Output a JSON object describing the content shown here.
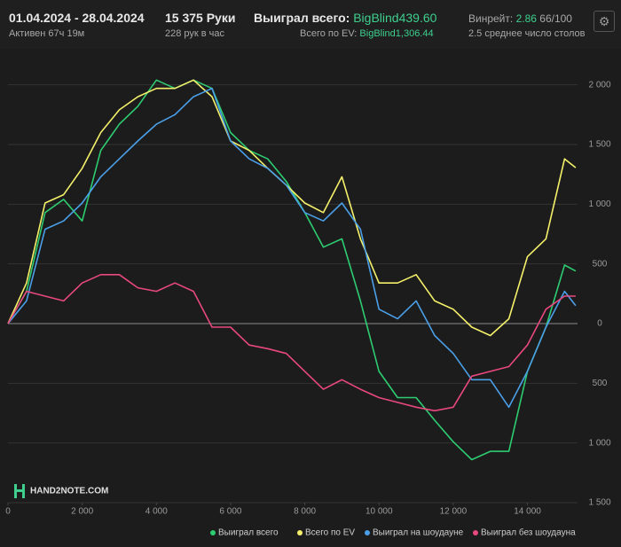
{
  "header": {
    "period": "01.04.2024 - 28.04.2024",
    "active": "Активен 67ч 19м",
    "hands": "15 375 Руки",
    "rate": "228 рук в час",
    "won_label": "Выиграл всего:",
    "won_value": "BigBlind439.60",
    "ev_label": "Всего по EV:",
    "ev_value": "BigBlind1,306.44",
    "winrate_label": "Винрейт:",
    "winrate_value": "2.86",
    "winrate_unit": "66/100",
    "tables": "2.5 среднее число столов",
    "logo": "HAND2NOTE.COM"
  },
  "chart_data": {
    "type": "line",
    "x": [
      0,
      500,
      1000,
      1500,
      2000,
      2500,
      3000,
      3500,
      4000,
      4500,
      5000,
      5500,
      6000,
      6500,
      7000,
      7500,
      8000,
      8500,
      9000,
      9500,
      10000,
      10500,
      11000,
      11500,
      12000,
      12500,
      13000,
      13500,
      14000,
      14500,
      15000,
      15300
    ],
    "series": [
      {
        "name": "Выиграл всего",
        "color": "#2ecc71",
        "values": [
          0,
          270,
          930,
          1040,
          860,
          1450,
          1670,
          1820,
          2040,
          1970,
          2040,
          1970,
          1600,
          1450,
          1380,
          1190,
          930,
          640,
          710,
          190,
          -400,
          -620,
          -620,
          -810,
          -990,
          -1140,
          -1070,
          -1070,
          -400,
          -30,
          490,
          440
        ]
      },
      {
        "name": "Всего по EV",
        "color": "#f4f06a",
        "values": [
          0,
          340,
          1010,
          1080,
          1300,
          1600,
          1790,
          1900,
          1970,
          1970,
          2040,
          1900,
          1530,
          1450,
          1300,
          1160,
          1010,
          930,
          1230,
          710,
          340,
          340,
          410,
          190,
          120,
          -30,
          -100,
          40,
          560,
          710,
          1380,
          1306
        ]
      },
      {
        "name": "Выиграл на шоудауне",
        "color": "#4a9fe8",
        "values": [
          0,
          190,
          790,
          860,
          1010,
          1230,
          1380,
          1530,
          1670,
          1750,
          1900,
          1970,
          1530,
          1380,
          1300,
          1160,
          930,
          860,
          1010,
          790,
          120,
          40,
          190,
          -100,
          -250,
          -470,
          -470,
          -700,
          -400,
          -30,
          270,
          150
        ]
      },
      {
        "name": "Выиграл без шоудауна",
        "color": "#e8487f",
        "values": [
          0,
          270,
          230,
          190,
          340,
          410,
          410,
          300,
          270,
          340,
          270,
          -30,
          -30,
          -180,
          -210,
          -250,
          -400,
          -550,
          -470,
          -550,
          -620,
          -660,
          -700,
          -730,
          -700,
          -440,
          -400,
          -360,
          -180,
          120,
          230,
          230
        ]
      }
    ],
    "xlim": [
      0,
      15350
    ],
    "ylim": [
      -1500,
      2250
    ],
    "xticks": [
      0,
      {
        "value": 2000,
        "label": "2 000"
      },
      {
        "value": 4000,
        "label": "4 000"
      },
      {
        "value": 6000,
        "label": "6 000"
      },
      {
        "value": 8000,
        "label": "8 000"
      },
      {
        "value": 10000,
        "label": "10 000"
      },
      {
        "value": 12000,
        "label": "12 000"
      },
      {
        "value": 14000,
        "label": "14 000"
      }
    ],
    "yticks": [
      {
        "value": 2000,
        "label": "2 000"
      },
      {
        "value": 1500,
        "label": "1 500"
      },
      {
        "value": 1000,
        "label": "1 000"
      },
      500,
      0,
      {
        "value": -500,
        "label": "500"
      },
      {
        "value": -1000,
        "label": "1 000"
      },
      {
        "value": -1500,
        "label": "1 500"
      }
    ],
    "grid": true
  }
}
